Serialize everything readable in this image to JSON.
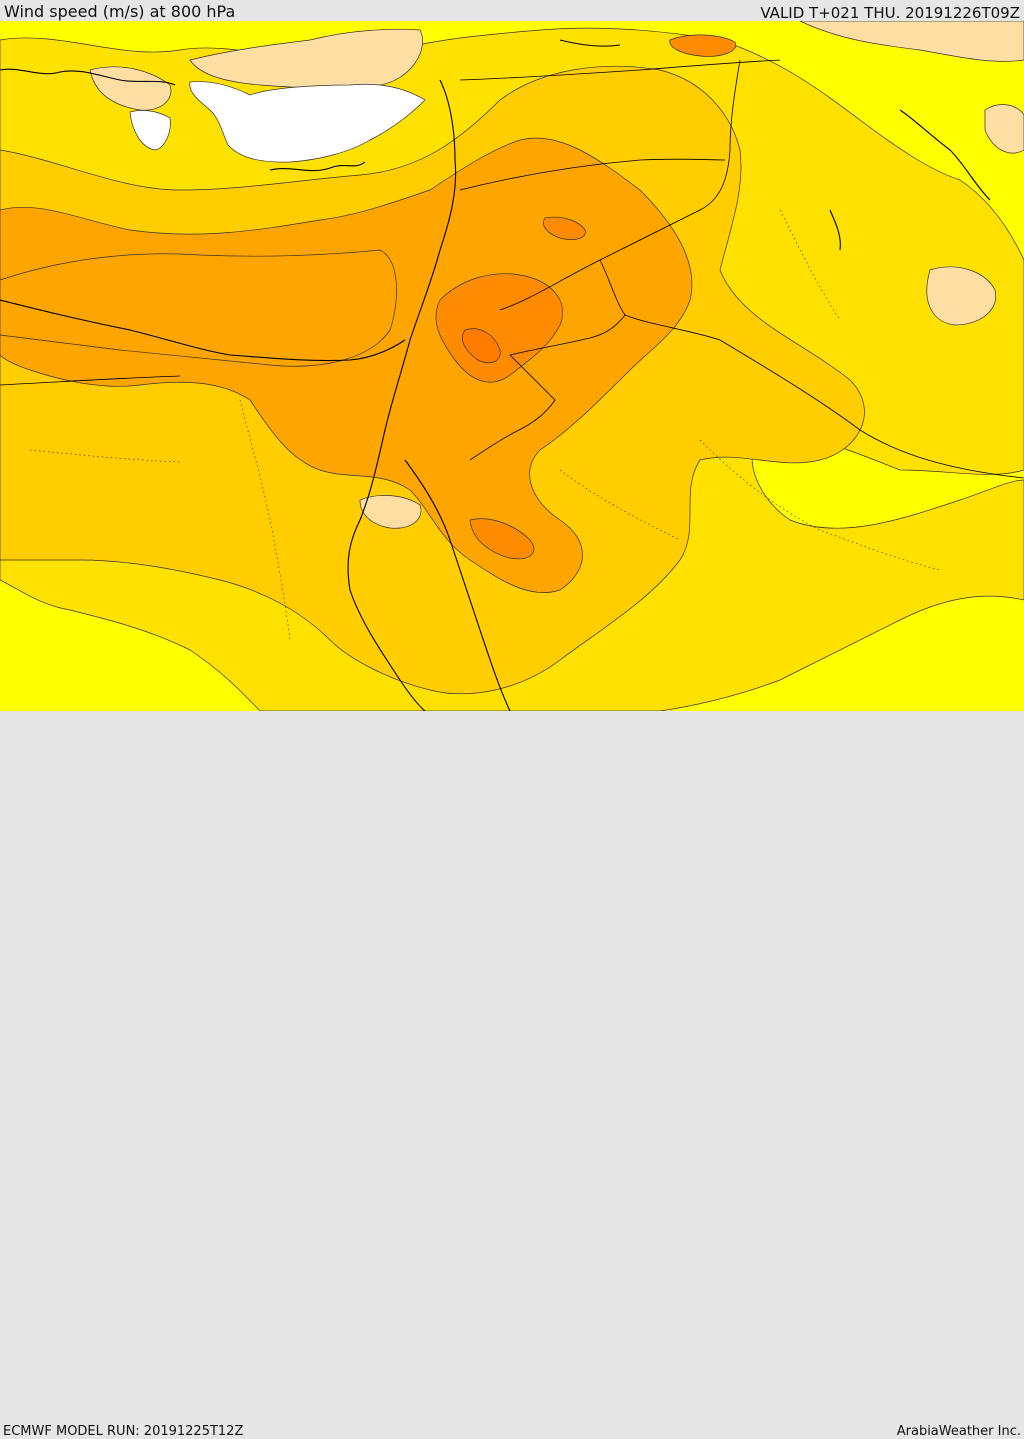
{
  "header": {
    "title": "Wind speed (m/s) at 800 hPa",
    "valid": "VALID T+021 THU. 20191226T09Z"
  },
  "footer": {
    "model_run": "ECMWF MODEL RUN: 20191225T12Z",
    "credit": "ArabiaWeather Inc."
  },
  "colors": {
    "band_lt5": "#ffffff",
    "band_5_10": "#ffdea4",
    "band_10_15": "#ffff00",
    "band_15_20": "#ffe100",
    "band_20_25": "#ffcd00",
    "band_25_30": "#ffa500",
    "band_30_35": "#ff8c00",
    "band_35_40": "#ff7c00",
    "contour": "#222222",
    "coastline": "#000000",
    "border": "#000000"
  }
}
